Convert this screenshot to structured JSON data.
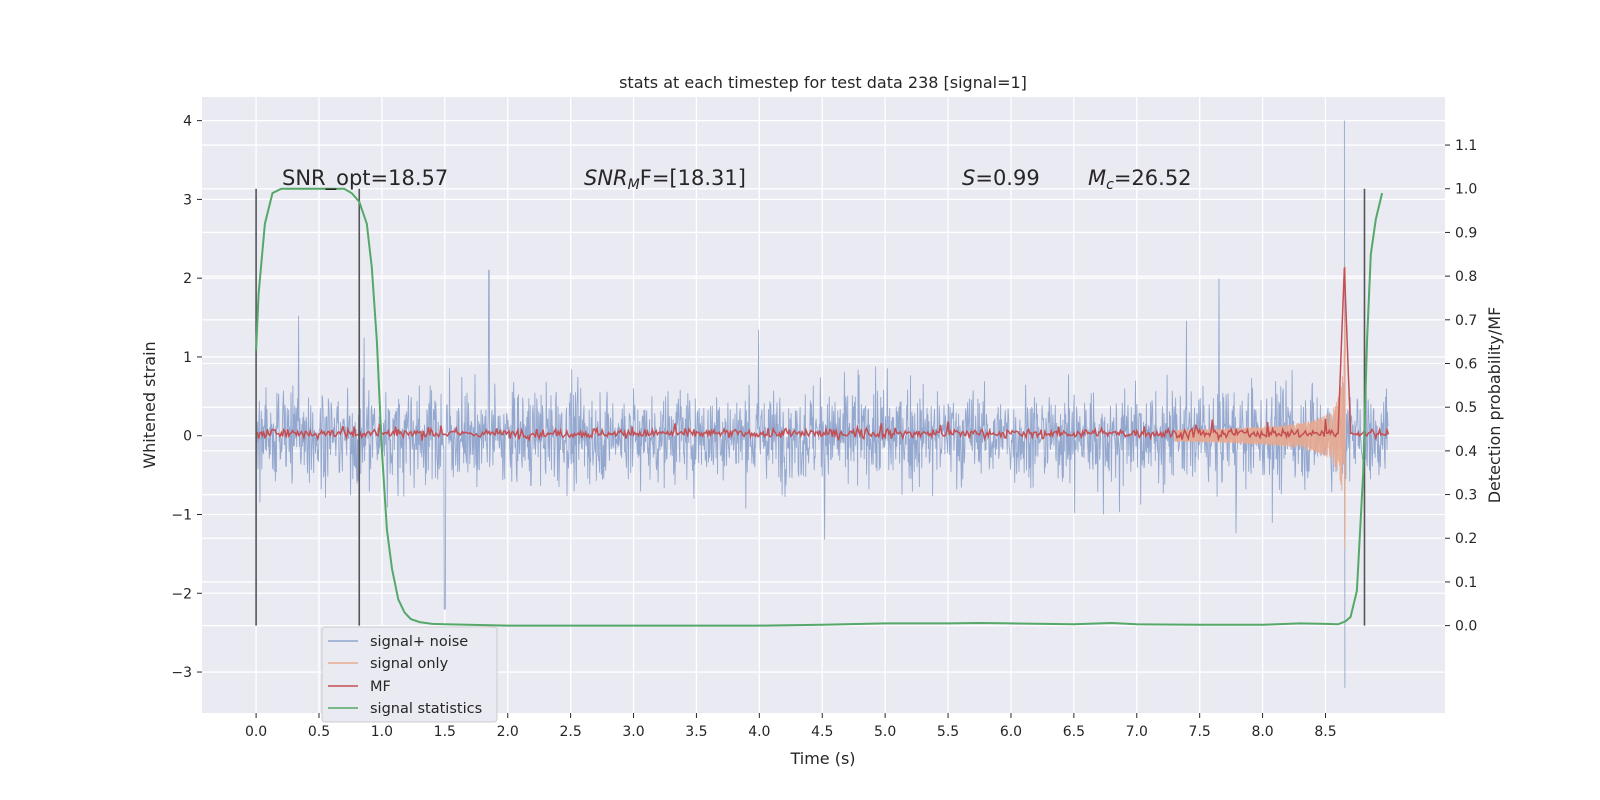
{
  "chart_data": {
    "type": "line",
    "title": "stats at each timestep for test data 238 [signal=1]",
    "xlabel": "Time (s)",
    "ylabel_left": "Whitened strain",
    "ylabel_right": "Detection probability/MF",
    "xlim": [
      -0.43,
      9.45
    ],
    "ylim_left": [
      -3.52,
      4.3
    ],
    "ylim_right": [
      -0.2,
      1.21
    ],
    "x_ticks": [
      "0.0",
      "0.5",
      "1.0",
      "1.5",
      "2.0",
      "2.5",
      "3.0",
      "3.5",
      "4.0",
      "4.5",
      "5.0",
      "5.5",
      "6.0",
      "6.5",
      "7.0",
      "7.5",
      "8.0",
      "8.5"
    ],
    "y_ticks_left": [
      "−3",
      "−2",
      "−1",
      "0",
      "1",
      "2",
      "3",
      "4"
    ],
    "y_ticks_right": [
      "0.0",
      "0.1",
      "0.2",
      "0.3",
      "0.4",
      "0.5",
      "0.6",
      "0.7",
      "0.8",
      "0.9",
      "1.0",
      "1.1"
    ],
    "grid": true,
    "legend_position": "lower-left",
    "annotations": {
      "snr_opt": "SNR_opt=18.57",
      "snr_mf_prefix": "SNR",
      "snr_mf_sub": "M",
      "snr_mf_rest": "F=[18.31]",
      "s_var": "S",
      "s_rest": "=0.99",
      "mc_var": "M",
      "mc_sub": "c",
      "mc_rest": "=26.52"
    },
    "vertical_lines_x": [
      0.0,
      0.82,
      8.81
    ],
    "series": [
      {
        "name": "signal+ noise",
        "color": "#8fa4cc",
        "description_values": {
          "x_range": [
            0.0,
            9.0
          ],
          "typical_amplitude": 1.0,
          "max": 4.0,
          "min": -3.2
        }
      },
      {
        "name": "signal only",
        "color": "#e8a98f",
        "chirp": {
          "x_start": 7.3,
          "x_peak": 8.65,
          "x_end": 8.66,
          "peak_amplitude": 2.2
        }
      },
      {
        "name": "MF",
        "color": "#c44e52",
        "baseline_right_axis": 0.44,
        "peak": {
          "x": 8.65,
          "value": 0.82
        }
      },
      {
        "name": "signal statistics",
        "color": "#55a868",
        "x": [
          0.0,
          0.02,
          0.07,
          0.13,
          0.2,
          0.3,
          0.4,
          0.5,
          0.6,
          0.7,
          0.76,
          0.82,
          0.88,
          0.92,
          0.96,
          1.0,
          1.04,
          1.08,
          1.13,
          1.18,
          1.23,
          1.3,
          1.4,
          1.5,
          2.0,
          3.0,
          4.0,
          4.5,
          5.0,
          5.5,
          5.75,
          6.0,
          6.5,
          6.8,
          7.0,
          7.5,
          8.0,
          8.3,
          8.5,
          8.6,
          8.66,
          8.7,
          8.75,
          8.8,
          8.83,
          8.86,
          8.9,
          8.95
        ],
        "values": [
          0.63,
          0.76,
          0.92,
          0.99,
          1.0,
          1.0,
          1.0,
          1.0,
          1.0,
          1.0,
          0.99,
          0.97,
          0.92,
          0.82,
          0.65,
          0.4,
          0.22,
          0.13,
          0.06,
          0.03,
          0.015,
          0.008,
          0.004,
          0.003,
          0.0,
          0.0,
          0.0,
          0.002,
          0.005,
          0.005,
          0.006,
          0.005,
          0.003,
          0.006,
          0.003,
          0.002,
          0.002,
          0.005,
          0.004,
          0.003,
          0.01,
          0.02,
          0.08,
          0.35,
          0.65,
          0.85,
          0.93,
          0.99
        ]
      }
    ]
  }
}
